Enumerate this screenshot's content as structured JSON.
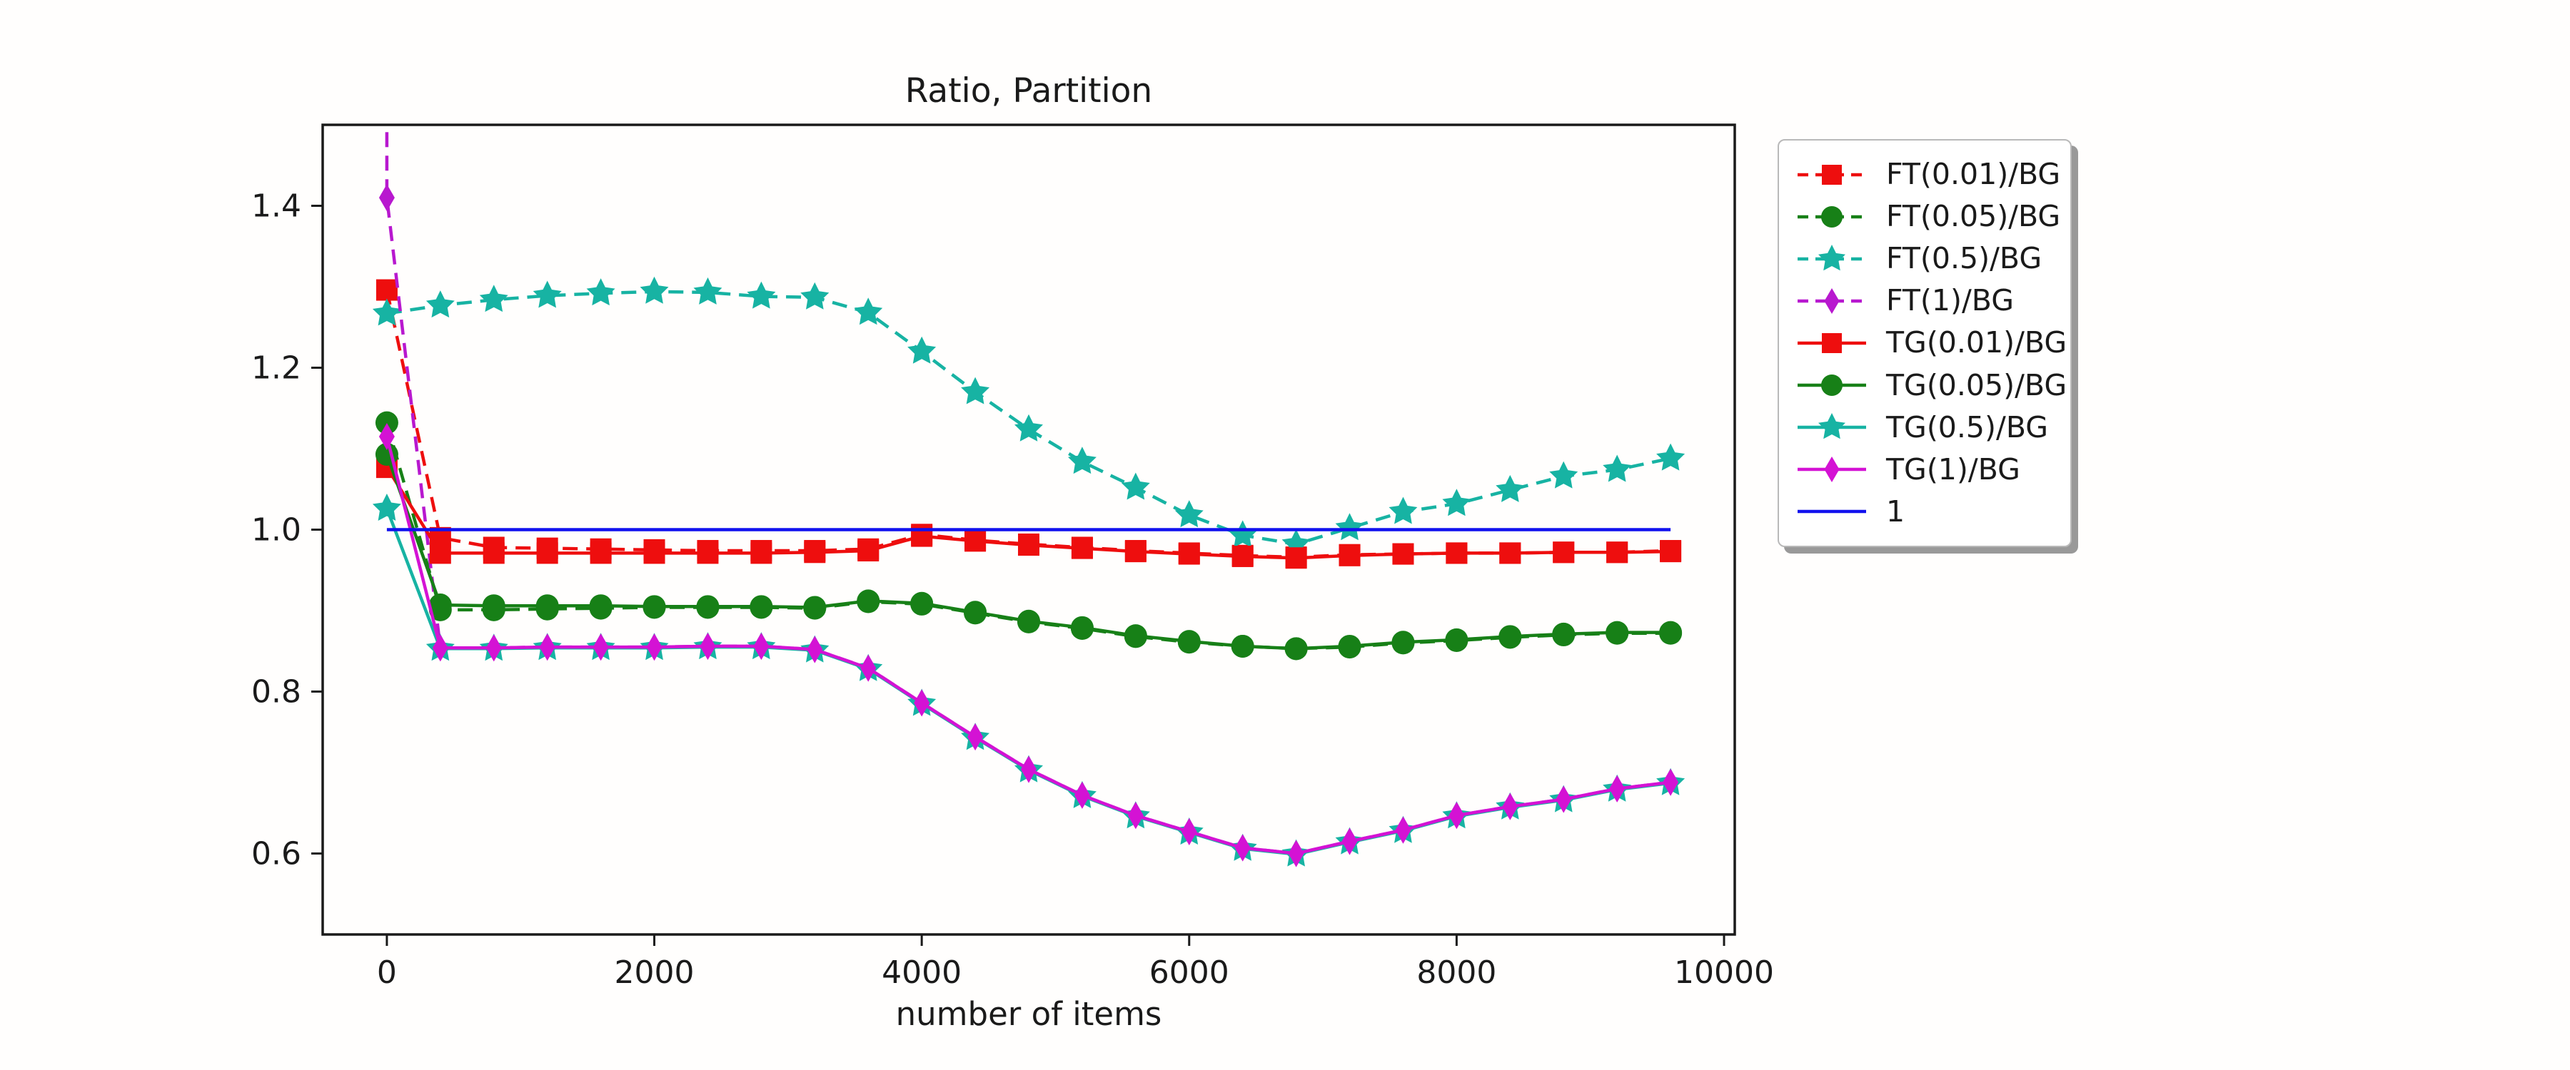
{
  "chart_data": {
    "type": "line",
    "title": "Ratio, Partition",
    "xlabel": "number of items",
    "ylabel": "",
    "xlim": [
      -480,
      10080
    ],
    "ylim": [
      0.5,
      1.5
    ],
    "grid": false,
    "legend_position": "outside-right",
    "xticks": [
      0,
      2000,
      4000,
      6000,
      8000,
      10000
    ],
    "xtick_labels": [
      "0",
      "2000",
      "4000",
      "6000",
      "8000",
      "10000"
    ],
    "yticks": [
      1.4,
      1.2,
      1.0,
      0.8,
      0.6
    ],
    "ytick_labels": [
      "1.4",
      "1.2",
      "1.0",
      "0.8",
      "0.6"
    ],
    "axis_color": "#1a1a1a",
    "x": [
      0,
      400,
      800,
      1200,
      1600,
      2000,
      2400,
      2800,
      3200,
      3600,
      4000,
      4400,
      4800,
      5200,
      5600,
      6000,
      6400,
      6800,
      7200,
      7600,
      8000,
      8400,
      8800,
      9200,
      9600
    ],
    "series": [
      {
        "name": "FT(0.01)/BG",
        "color": "#ee0e0e",
        "linestyle": "dashed",
        "marker": "square",
        "values": [
          1.296,
          0.99,
          0.978,
          0.977,
          0.976,
          0.975,
          0.974,
          0.974,
          0.974,
          0.976,
          0.994,
          0.987,
          0.982,
          0.978,
          0.974,
          0.971,
          0.968,
          0.966,
          0.969,
          0.97,
          0.971,
          0.971,
          0.972,
          0.972,
          0.974
        ]
      },
      {
        "name": "FT(0.05)/BG",
        "color": "#178017",
        "linestyle": "dashed",
        "marker": "circle",
        "values": [
          1.132,
          0.901,
          0.901,
          0.902,
          0.903,
          0.904,
          0.904,
          0.904,
          0.903,
          0.911,
          0.908,
          0.897,
          0.886,
          0.878,
          0.868,
          0.861,
          0.856,
          0.853,
          0.855,
          0.86,
          0.863,
          0.867,
          0.87,
          0.872,
          0.872
        ]
      },
      {
        "name": "FT(0.5)/BG",
        "color": "#17b3a3",
        "linestyle": "dashed",
        "marker": "star",
        "values": [
          1.267,
          1.277,
          1.284,
          1.289,
          1.292,
          1.294,
          1.293,
          1.288,
          1.287,
          1.268,
          1.22,
          1.17,
          1.124,
          1.084,
          1.052,
          1.018,
          0.993,
          0.982,
          1.002,
          1.022,
          1.032,
          1.049,
          1.066,
          1.074,
          1.088
        ]
      },
      {
        "name": "FT(1)/BG",
        "color": "#b818cf",
        "linestyle": "dashed",
        "marker": "diamond",
        "pre_point": [
          0,
          1.52
        ],
        "values": [
          1.41,
          0.854,
          0.854,
          0.855,
          0.855,
          0.855,
          0.856,
          0.856,
          0.852,
          0.829,
          0.786,
          0.744,
          0.704,
          0.672,
          0.647,
          0.627,
          0.607,
          0.6,
          0.615,
          0.629,
          0.647,
          0.658,
          0.667,
          0.68,
          0.688
        ]
      },
      {
        "name": "TG(0.01)/BG",
        "color": "#ee0e0e",
        "linestyle": "solid",
        "marker": "square",
        "values": [
          1.077,
          0.971,
          0.971,
          0.971,
          0.971,
          0.971,
          0.971,
          0.971,
          0.972,
          0.974,
          0.992,
          0.986,
          0.981,
          0.977,
          0.973,
          0.97,
          0.967,
          0.965,
          0.968,
          0.97,
          0.971,
          0.971,
          0.972,
          0.972,
          0.973
        ]
      },
      {
        "name": "TG(0.05)/BG",
        "color": "#178017",
        "linestyle": "solid",
        "marker": "circle",
        "values": [
          1.093,
          0.907,
          0.906,
          0.906,
          0.906,
          0.905,
          0.905,
          0.905,
          0.904,
          0.912,
          0.909,
          0.898,
          0.887,
          0.879,
          0.869,
          0.862,
          0.856,
          0.853,
          0.856,
          0.861,
          0.864,
          0.868,
          0.871,
          0.873,
          0.873
        ]
      },
      {
        "name": "TG(0.5)/BG",
        "color": "#17b3a3",
        "linestyle": "solid",
        "marker": "star",
        "values": [
          1.026,
          0.853,
          0.853,
          0.854,
          0.854,
          0.854,
          0.855,
          0.855,
          0.851,
          0.828,
          0.785,
          0.743,
          0.703,
          0.671,
          0.646,
          0.626,
          0.606,
          0.599,
          0.614,
          0.628,
          0.646,
          0.657,
          0.666,
          0.679,
          0.687
        ]
      },
      {
        "name": "TG(1)/BG",
        "color": "#d412d4",
        "linestyle": "solid",
        "marker": "diamond",
        "values": [
          1.115,
          0.854,
          0.854,
          0.855,
          0.855,
          0.855,
          0.856,
          0.856,
          0.852,
          0.829,
          0.786,
          0.744,
          0.704,
          0.672,
          0.647,
          0.627,
          0.607,
          0.6,
          0.615,
          0.629,
          0.647,
          0.658,
          0.667,
          0.68,
          0.688
        ]
      },
      {
        "name": "1",
        "color": "#1111ee",
        "linestyle": "solid",
        "marker": "none",
        "type": "hline",
        "value": 1.0,
        "x_range": [
          0,
          9600
        ]
      }
    ]
  }
}
